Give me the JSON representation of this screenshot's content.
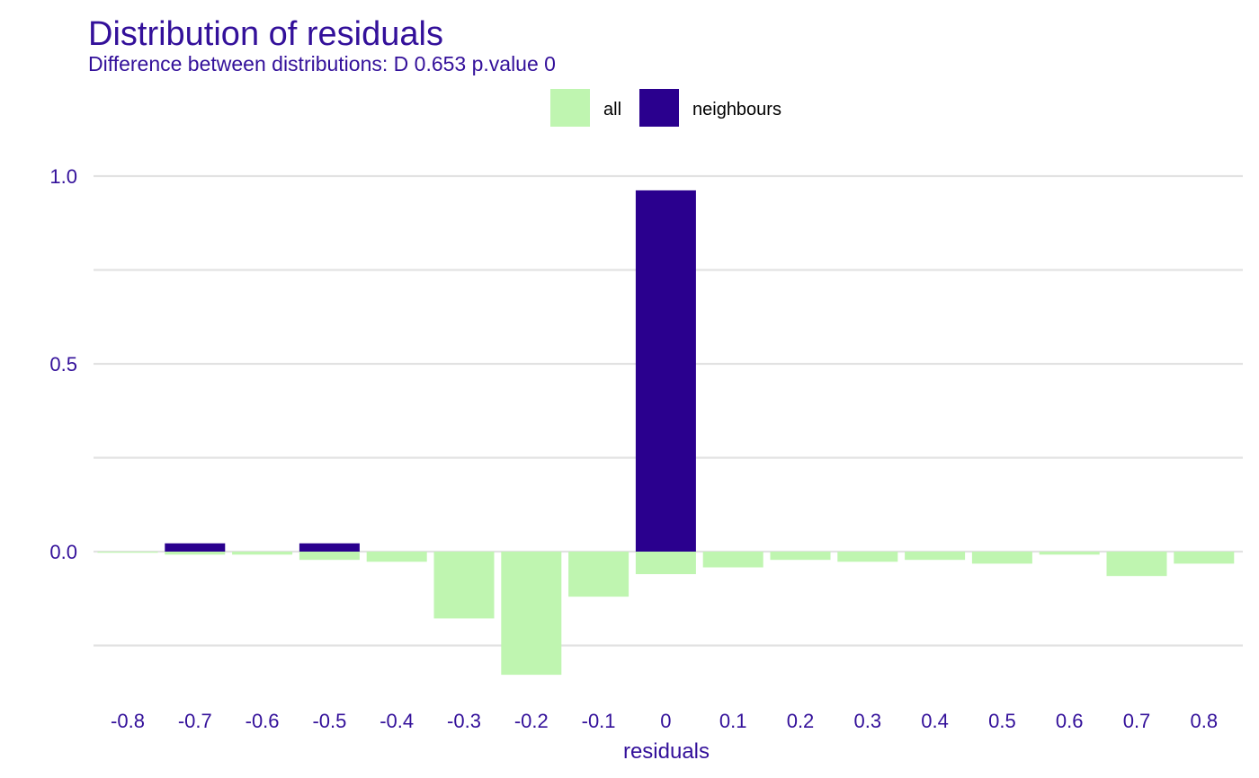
{
  "chart_data": {
    "type": "bar",
    "title": "Distribution of residuals",
    "subtitle": "Difference between distributions: D 0.653 p.value 0",
    "xlabel": "residuals",
    "ylabel": "",
    "categories": [
      "-0.8",
      "-0.7",
      "-0.6",
      "-0.5",
      "-0.4",
      "-0.3",
      "-0.2",
      "-0.1",
      "0",
      "0.1",
      "0.2",
      "0.3",
      "0.4",
      "0.5",
      "0.6",
      "0.7",
      "0.8"
    ],
    "series": [
      {
        "name": "all",
        "direction": "down",
        "values": [
          0.003,
          0.008,
          0.008,
          0.022,
          0.027,
          0.178,
          0.328,
          0.12,
          0.06,
          0.042,
          0.022,
          0.027,
          0.022,
          0.032,
          0.008,
          0.065,
          0.032
        ]
      },
      {
        "name": "neighbours",
        "direction": "up",
        "values": [
          0,
          0.022,
          0,
          0.022,
          0,
          0,
          0,
          0,
          0.962,
          0,
          0,
          0,
          0,
          0,
          0,
          0,
          0
        ]
      }
    ],
    "ylim": [
      -0.35,
      1.0
    ],
    "yticks": [
      {
        "value": 1.0,
        "label": "1.0"
      },
      {
        "value": 0.5,
        "label": "0.5"
      },
      {
        "value": 0.0,
        "label": "0.0"
      }
    ],
    "minor_gridlines": [
      0.75,
      0.25,
      -0.25
    ],
    "grid": true,
    "legend_position": "top",
    "colors": {
      "all": "#bff5b0",
      "neighbours": "#2a008e",
      "text": "#33109a",
      "grid": "#e2e2e2"
    }
  }
}
